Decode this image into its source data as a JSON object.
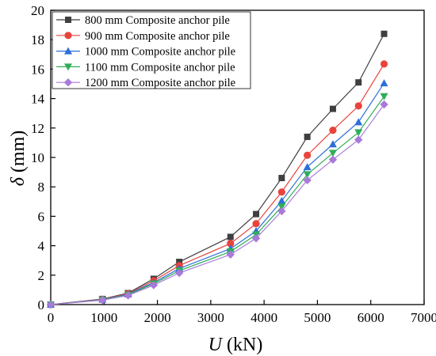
{
  "chart_data": {
    "type": "line",
    "title": "",
    "xlabel": "U (kN)",
    "xlabel_var": "U",
    "xlabel_unit": " (kN)",
    "ylabel": "δ (mm)",
    "ylabel_var": "δ",
    "ylabel_unit": " (mm)",
    "xlim": [
      0,
      7000
    ],
    "ylim": [
      0,
      20
    ],
    "xticks": [
      0,
      1000,
      2000,
      3000,
      4000,
      5000,
      6000,
      7000
    ],
    "yticks": [
      0,
      2,
      4,
      6,
      8,
      10,
      12,
      14,
      16,
      18,
      20
    ],
    "grid": false,
    "legend_position": "top-left",
    "x": [
      0,
      970,
      1450,
      1930,
      2410,
      3370,
      3850,
      4330,
      4810,
      5290,
      5770,
      6250
    ],
    "series": [
      {
        "name": "800  mm Composite anchor pile",
        "color": "#3f3f3f",
        "marker": "square",
        "values": [
          0,
          0.38,
          0.78,
          1.75,
          2.9,
          4.6,
          6.15,
          8.6,
          11.4,
          13.3,
          15.1,
          18.4
        ]
      },
      {
        "name": "900  mm Composite anchor pile",
        "color": "#e8443c",
        "marker": "circle",
        "values": [
          0,
          0.36,
          0.74,
          1.62,
          2.65,
          4.15,
          5.5,
          7.65,
          10.15,
          11.85,
          13.5,
          16.35
        ]
      },
      {
        "name": "1000  mm Composite anchor pile",
        "color": "#2d6fd8",
        "marker": "triangle-up",
        "values": [
          0,
          0.34,
          0.7,
          1.5,
          2.45,
          3.8,
          5.0,
          7.05,
          9.35,
          10.9,
          12.4,
          15.05
        ]
      },
      {
        "name": "1100  mm Composite anchor pile",
        "color": "#2fae5a",
        "marker": "triangle-down",
        "values": [
          0,
          0.32,
          0.66,
          1.42,
          2.3,
          3.6,
          4.75,
          6.65,
          8.85,
          10.3,
          11.7,
          14.15
        ]
      },
      {
        "name": "1200  mm Composite anchor pile",
        "color": "#a87ad9",
        "marker": "diamond",
        "values": [
          0,
          0.3,
          0.62,
          1.32,
          2.15,
          3.4,
          4.5,
          6.35,
          8.45,
          9.85,
          11.2,
          13.6
        ]
      }
    ]
  }
}
